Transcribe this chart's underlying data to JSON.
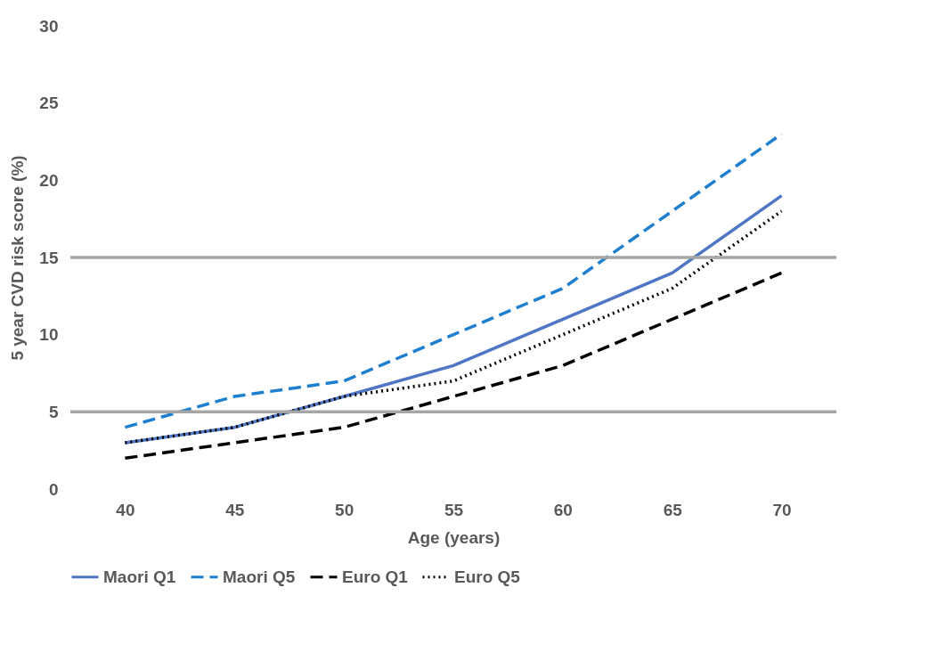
{
  "chart_data": {
    "type": "line",
    "xlabel": "Age (years)",
    "ylabel": "5 year CVD risk score (%)",
    "categories": [
      "40",
      "45",
      "50",
      "55",
      "60",
      "65",
      "70"
    ],
    "series": [
      {
        "name": "Maori Q1",
        "color": "#4f76c4",
        "line_style": "solid",
        "values": [
          3,
          4,
          6,
          8,
          11,
          14,
          19
        ]
      },
      {
        "name": "Maori Q5",
        "color": "#1f7fcf",
        "line_style": "dashed",
        "values": [
          4,
          6,
          7,
          10,
          13,
          18,
          23
        ]
      },
      {
        "name": "Euro Q1",
        "color": "#000000",
        "line_style": "dashed",
        "values": [
          2,
          3,
          4,
          6,
          8,
          11,
          14
        ]
      },
      {
        "name": "Euro Q5",
        "color": "#000000",
        "line_style": "dotted",
        "values": [
          3,
          4,
          6,
          7,
          10,
          13,
          18
        ]
      }
    ],
    "ylim": [
      0,
      30
    ],
    "yticks": [
      0,
      5,
      10,
      15,
      20,
      25,
      30
    ],
    "ref_lines": [
      {
        "axis": "y",
        "value": 5,
        "color": "#a6a6a6"
      },
      {
        "axis": "y",
        "value": 15,
        "color": "#a6a6a6"
      }
    ],
    "grid": false,
    "legend": "bottom",
    "marker": "none"
  }
}
